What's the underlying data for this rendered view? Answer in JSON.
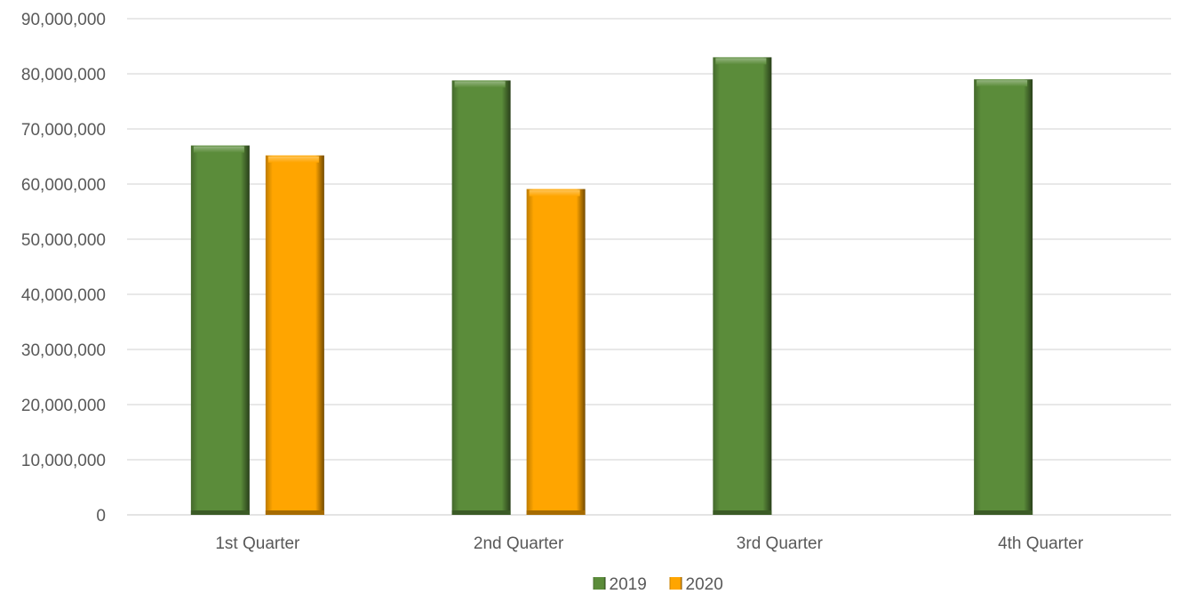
{
  "chart_data": {
    "type": "bar",
    "categories": [
      "1st Quarter",
      "2nd Quarter",
      "3rd Quarter",
      "4th Quarter"
    ],
    "series": [
      {
        "name": "2019",
        "values": [
          67000000,
          78800000,
          83000000,
          79000000
        ],
        "color": "#5b8c3a"
      },
      {
        "name": "2020",
        "values": [
          65200000,
          59100000,
          null,
          null
        ],
        "color": "#ffa500"
      }
    ],
    "title": "",
    "xlabel": "",
    "ylabel": "",
    "ylim": [
      0,
      90000000
    ],
    "yticks": [
      0,
      10000000,
      20000000,
      30000000,
      40000000,
      50000000,
      60000000,
      70000000,
      80000000,
      90000000
    ],
    "ytick_labels": [
      "0",
      "10,000,000",
      "20,000,000",
      "30,000,000",
      "40,000,000",
      "50,000,000",
      "60,000,000",
      "70,000,000",
      "80,000,000",
      "90,000,000"
    ],
    "grid": true,
    "legend": "bottom-center"
  }
}
